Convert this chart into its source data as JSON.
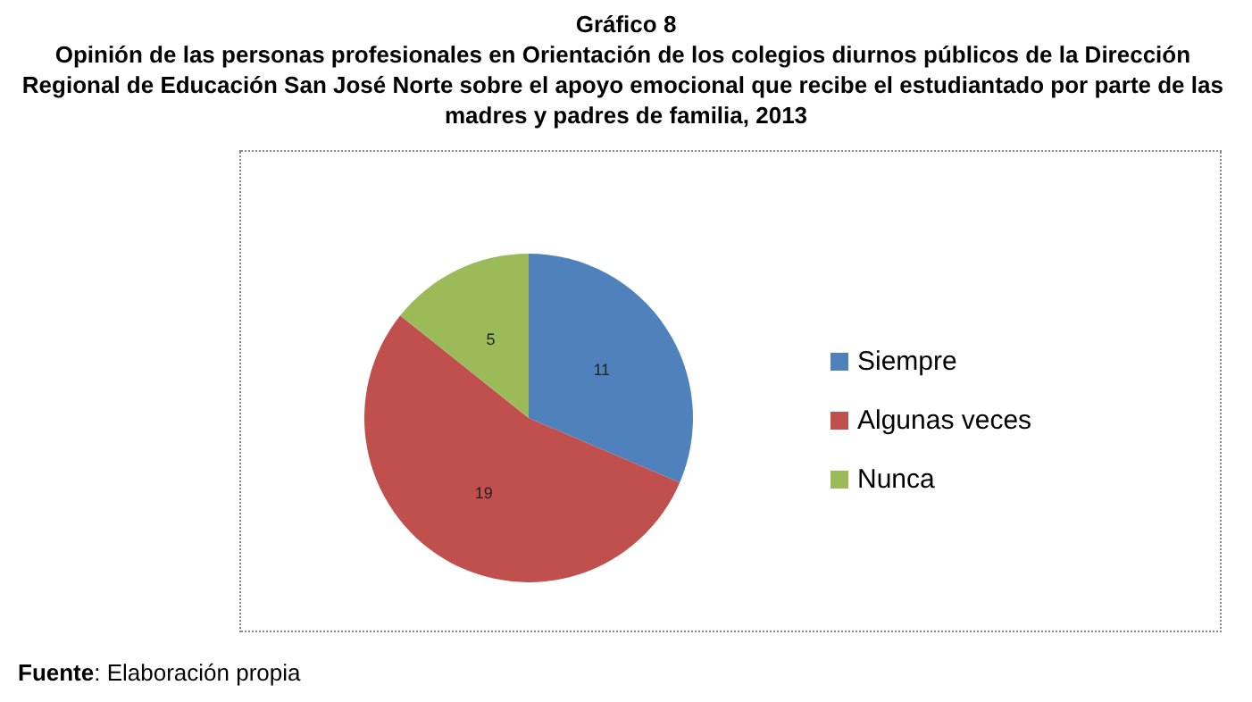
{
  "chart_data": {
    "type": "pie",
    "title": "Gráfico 8",
    "subtitle": "Opinión de las personas profesionales en Orientación de los colegios diurnos públicos de la Dirección Regional de Educación San José Norte sobre el apoyo emocional que recibe el estudiantado por parte de las madres y padres de familia, 2013",
    "categories": [
      "Siempre",
      "Algunas veces",
      "Nunca"
    ],
    "values": [
      11,
      19,
      5
    ],
    "colors": [
      "#4f81bd",
      "#c0504d",
      "#9bbb59"
    ],
    "data_labels": true,
    "legend": "right",
    "annotations": [
      "Fuente: Elaboración propia"
    ]
  }
}
